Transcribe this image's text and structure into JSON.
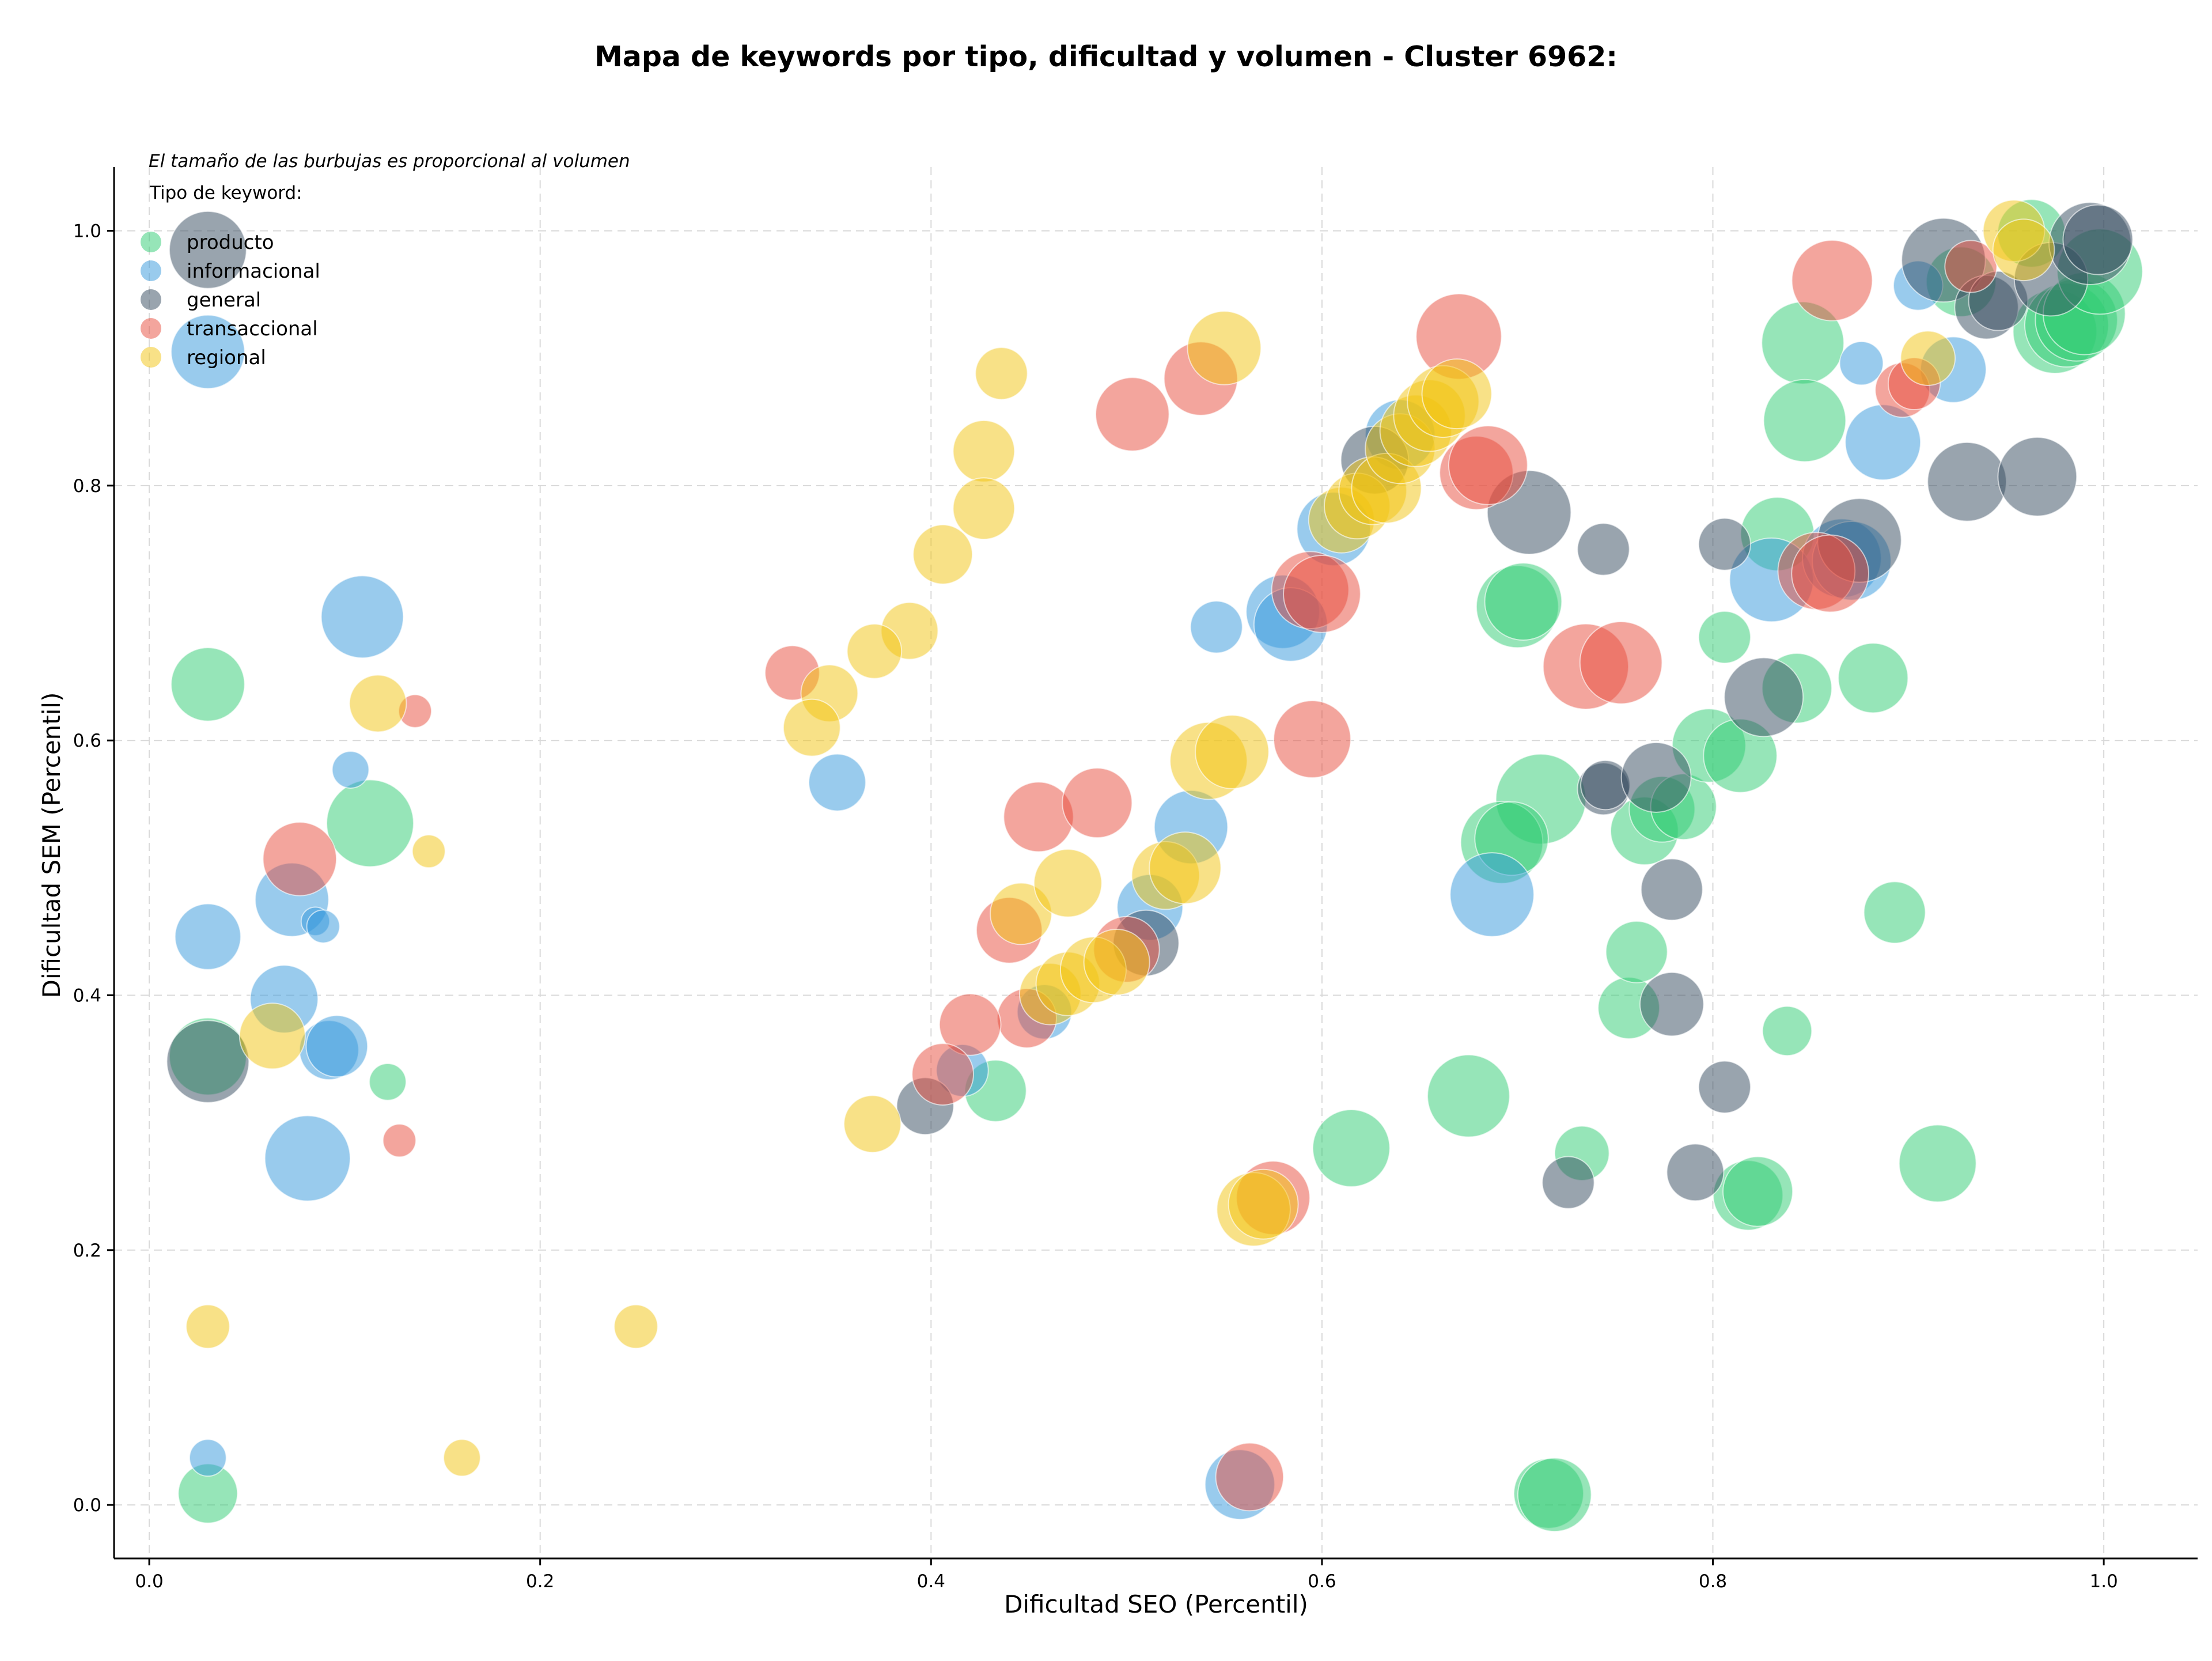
{
  "chart_data": {
    "type": "scatter",
    "title": "Mapa de keywords por tipo, dificultad y volumen - Cluster 6962:",
    "xlabel": "Dificultad SEO (Percentil)",
    "ylabel": "Dificultad SEM (Percentil)",
    "xlim": [
      -0.018,
      1.048
    ],
    "ylim": [
      -0.042,
      1.05
    ],
    "xticks": [
      "0.0",
      "0.2",
      "0.4",
      "0.6",
      "0.8",
      "1.0"
    ],
    "yticks": [
      "0.0",
      "0.2",
      "0.4",
      "0.6",
      "0.8",
      "1.0"
    ],
    "grid": true,
    "legend": {
      "placement": "top-left",
      "note": "El tamaño de las burbujas es proporcional al volumen",
      "title": "Tipo de keyword:"
    },
    "series": [
      {
        "name": "producto",
        "color": "#2ecc71",
        "points": [
          {
            "x": 0.03,
            "y": 0.644,
            "size": 2
          },
          {
            "x": 0.113,
            "y": 0.535,
            "size": 2.8
          },
          {
            "x": 0.03,
            "y": 0.352,
            "size": 2.2
          },
          {
            "x": 0.122,
            "y": 0.332,
            "size": 0.5
          },
          {
            "x": 0.03,
            "y": 0.009,
            "size": 1.3
          },
          {
            "x": 0.433,
            "y": 0.325,
            "size": 1.4
          },
          {
            "x": 0.615,
            "y": 0.28,
            "size": 2.2
          },
          {
            "x": 0.675,
            "y": 0.321,
            "size": 2.5
          },
          {
            "x": 0.733,
            "y": 0.276,
            "size": 1.1
          },
          {
            "x": 0.716,
            "y": 0.009,
            "size": 1.8
          },
          {
            "x": 0.719,
            "y": 0.008,
            "size": 2
          },
          {
            "x": 0.7,
            "y": 0.705,
            "size": 2.5
          },
          {
            "x": 0.703,
            "y": 0.709,
            "size": 2.2
          },
          {
            "x": 0.712,
            "y": 0.554,
            "size": 3
          },
          {
            "x": 0.692,
            "y": 0.52,
            "size": 2.5
          },
          {
            "x": 0.697,
            "y": 0.523,
            "size": 2
          },
          {
            "x": 0.757,
            "y": 0.39,
            "size": 1.4
          },
          {
            "x": 0.761,
            "y": 0.434,
            "size": 1.4
          },
          {
            "x": 0.765,
            "y": 0.529,
            "size": 1.7
          },
          {
            "x": 0.774,
            "y": 0.546,
            "size": 1.6
          },
          {
            "x": 0.785,
            "y": 0.548,
            "size": 1.6
          },
          {
            "x": 0.798,
            "y": 0.596,
            "size": 2
          },
          {
            "x": 0.814,
            "y": 0.588,
            "size": 2
          },
          {
            "x": 0.806,
            "y": 0.681,
            "size": 1
          },
          {
            "x": 0.818,
            "y": 0.243,
            "size": 1.8
          },
          {
            "x": 0.823,
            "y": 0.246,
            "size": 1.8
          },
          {
            "x": 0.838,
            "y": 0.372,
            "size": 0.9
          },
          {
            "x": 0.833,
            "y": 0.762,
            "size": 2
          },
          {
            "x": 0.843,
            "y": 0.641,
            "size": 1.8
          },
          {
            "x": 0.846,
            "y": 0.912,
            "size": 2.5
          },
          {
            "x": 0.847,
            "y": 0.851,
            "size": 2.5
          },
          {
            "x": 0.882,
            "y": 0.649,
            "size": 1.8
          },
          {
            "x": 0.893,
            "y": 0.465,
            "size": 1.4
          },
          {
            "x": 0.915,
            "y": 0.268,
            "size": 2.2
          },
          {
            "x": 0.927,
            "y": 0.96,
            "size": 1.8
          },
          {
            "x": 0.963,
            "y": 0.998,
            "size": 1.7
          },
          {
            "x": 0.975,
            "y": 0.921,
            "size": 2.6
          },
          {
            "x": 0.981,
            "y": 0.926,
            "size": 2.6
          },
          {
            "x": 0.986,
            "y": 0.93,
            "size": 2.5
          },
          {
            "x": 0.99,
            "y": 0.935,
            "size": 2.5
          },
          {
            "x": 0.998,
            "y": 0.968,
            "size": 2.7
          }
        ]
      },
      {
        "name": "informacional",
        "color": "#3498db",
        "points": [
          {
            "x": 0.03,
            "y": 0.905,
            "size": 2
          },
          {
            "x": 0.109,
            "y": 0.697,
            "size": 2.5
          },
          {
            "x": 0.103,
            "y": 0.577,
            "size": 0.5
          },
          {
            "x": 0.03,
            "y": 0.446,
            "size": 1.6
          },
          {
            "x": 0.073,
            "y": 0.475,
            "size": 2
          },
          {
            "x": 0.085,
            "y": 0.458,
            "size": 0.3
          },
          {
            "x": 0.089,
            "y": 0.454,
            "size": 0.4
          },
          {
            "x": 0.069,
            "y": 0.397,
            "size": 1.7
          },
          {
            "x": 0.092,
            "y": 0.357,
            "size": 1.3
          },
          {
            "x": 0.096,
            "y": 0.36,
            "size": 1.4
          },
          {
            "x": 0.081,
            "y": 0.272,
            "size": 2.7
          },
          {
            "x": 0.03,
            "y": 0.037,
            "size": 0.5
          },
          {
            "x": 0.352,
            "y": 0.567,
            "size": 1.2
          },
          {
            "x": 0.546,
            "y": 0.689,
            "size": 1
          },
          {
            "x": 0.533,
            "y": 0.532,
            "size": 2
          },
          {
            "x": 0.512,
            "y": 0.469,
            "size": 1.6
          },
          {
            "x": 0.416,
            "y": 0.341,
            "size": 1
          },
          {
            "x": 0.458,
            "y": 0.387,
            "size": 1.1
          },
          {
            "x": 0.558,
            "y": 0.016,
            "size": 1.8
          },
          {
            "x": 0.58,
            "y": 0.701,
            "size": 2
          },
          {
            "x": 0.584,
            "y": 0.691,
            "size": 2
          },
          {
            "x": 0.606,
            "y": 0.766,
            "size": 2
          },
          {
            "x": 0.64,
            "y": 0.84,
            "size": 1.8
          },
          {
            "x": 0.687,
            "y": 0.479,
            "size": 2.6
          },
          {
            "x": 0.83,
            "y": 0.726,
            "size": 2.6
          },
          {
            "x": 0.866,
            "y": 0.743,
            "size": 2.3
          },
          {
            "x": 0.871,
            "y": 0.741,
            "size": 2.3
          },
          {
            "x": 0.876,
            "y": 0.896,
            "size": 0.7
          },
          {
            "x": 0.887,
            "y": 0.834,
            "size": 2.1
          },
          {
            "x": 0.905,
            "y": 0.957,
            "size": 0.9
          },
          {
            "x": 0.923,
            "y": 0.891,
            "size": 1.6
          }
        ]
      },
      {
        "name": "general",
        "color": "#34495e",
        "points": [
          {
            "x": 0.03,
            "y": 0.985,
            "size": 2.2
          },
          {
            "x": 0.03,
            "y": 0.348,
            "size": 2.5
          },
          {
            "x": 0.397,
            "y": 0.313,
            "size": 1.2
          },
          {
            "x": 0.51,
            "y": 0.441,
            "size": 1.6
          },
          {
            "x": 0.627,
            "y": 0.82,
            "size": 1.7
          },
          {
            "x": 0.706,
            "y": 0.779,
            "size": 2.6
          },
          {
            "x": 0.744,
            "y": 0.75,
            "size": 1
          },
          {
            "x": 0.744,
            "y": 0.562,
            "size": 1
          },
          {
            "x": 0.745,
            "y": 0.565,
            "size": 0.9
          },
          {
            "x": 0.726,
            "y": 0.253,
            "size": 1
          },
          {
            "x": 0.771,
            "y": 0.571,
            "size": 1.8
          },
          {
            "x": 0.779,
            "y": 0.483,
            "size": 1.4
          },
          {
            "x": 0.779,
            "y": 0.393,
            "size": 1.5
          },
          {
            "x": 0.791,
            "y": 0.261,
            "size": 1.2
          },
          {
            "x": 0.806,
            "y": 0.754,
            "size": 1
          },
          {
            "x": 0.806,
            "y": 0.328,
            "size": 1
          },
          {
            "x": 0.826,
            "y": 0.634,
            "size": 2.3
          },
          {
            "x": 0.875,
            "y": 0.757,
            "size": 2.6
          },
          {
            "x": 0.918,
            "y": 0.977,
            "size": 2.6
          },
          {
            "x": 0.93,
            "y": 0.803,
            "size": 2.3
          },
          {
            "x": 0.94,
            "y": 0.94,
            "size": 1.5
          },
          {
            "x": 0.946,
            "y": 0.945,
            "size": 1.3
          },
          {
            "x": 0.966,
            "y": 0.807,
            "size": 2.3
          },
          {
            "x": 0.973,
            "y": 0.962,
            "size": 2
          },
          {
            "x": 0.993,
            "y": 0.99,
            "size": 2.5
          },
          {
            "x": 0.997,
            "y": 0.993,
            "size": 1.8
          }
        ]
      },
      {
        "name": "transaccional",
        "color": "#e74c3c",
        "points": [
          {
            "x": 0.136,
            "y": 0.623,
            "size": 0.4
          },
          {
            "x": 0.077,
            "y": 0.507,
            "size": 2
          },
          {
            "x": 0.128,
            "y": 0.286,
            "size": 0.4
          },
          {
            "x": 0.329,
            "y": 0.653,
            "size": 1.1
          },
          {
            "x": 0.503,
            "y": 0.856,
            "size": 2
          },
          {
            "x": 0.538,
            "y": 0.884,
            "size": 2
          },
          {
            "x": 0.455,
            "y": 0.54,
            "size": 1.8
          },
          {
            "x": 0.485,
            "y": 0.551,
            "size": 1.8
          },
          {
            "x": 0.44,
            "y": 0.451,
            "size": 1.6
          },
          {
            "x": 0.449,
            "y": 0.382,
            "size": 1.3
          },
          {
            "x": 0.42,
            "y": 0.377,
            "size": 1.4
          },
          {
            "x": 0.406,
            "y": 0.338,
            "size": 1.4
          },
          {
            "x": 0.5,
            "y": 0.436,
            "size": 1.6
          },
          {
            "x": 0.563,
            "y": 0.022,
            "size": 1.7
          },
          {
            "x": 0.575,
            "y": 0.241,
            "size": 2
          },
          {
            "x": 0.594,
            "y": 0.718,
            "size": 2.2
          },
          {
            "x": 0.6,
            "y": 0.715,
            "size": 2.2
          },
          {
            "x": 0.595,
            "y": 0.601,
            "size": 2.2
          },
          {
            "x": 0.67,
            "y": 0.917,
            "size": 2.7
          },
          {
            "x": 0.679,
            "y": 0.81,
            "size": 2
          },
          {
            "x": 0.685,
            "y": 0.816,
            "size": 2.3
          },
          {
            "x": 0.735,
            "y": 0.658,
            "size": 2.7
          },
          {
            "x": 0.753,
            "y": 0.661,
            "size": 2.5
          },
          {
            "x": 0.861,
            "y": 0.961,
            "size": 2.4
          },
          {
            "x": 0.853,
            "y": 0.733,
            "size": 2.2
          },
          {
            "x": 0.86,
            "y": 0.731,
            "size": 2.2
          },
          {
            "x": 0.897,
            "y": 0.875,
            "size": 1.1
          },
          {
            "x": 0.903,
            "y": 0.88,
            "size": 1
          },
          {
            "x": 0.932,
            "y": 0.972,
            "size": 1
          }
        ]
      },
      {
        "name": "regional",
        "color": "#f1c40f",
        "points": [
          {
            "x": 0.117,
            "y": 0.629,
            "size": 1.2
          },
          {
            "x": 0.143,
            "y": 0.513,
            "size": 0.4
          },
          {
            "x": 0.063,
            "y": 0.368,
            "size": 1.6
          },
          {
            "x": 0.03,
            "y": 0.14,
            "size": 0.7
          },
          {
            "x": 0.16,
            "y": 0.037,
            "size": 0.5
          },
          {
            "x": 0.249,
            "y": 0.14,
            "size": 0.7
          },
          {
            "x": 0.436,
            "y": 0.888,
            "size": 1
          },
          {
            "x": 0.427,
            "y": 0.827,
            "size": 1.4
          },
          {
            "x": 0.427,
            "y": 0.782,
            "size": 1.4
          },
          {
            "x": 0.406,
            "y": 0.746,
            "size": 1.3
          },
          {
            "x": 0.389,
            "y": 0.686,
            "size": 1.2
          },
          {
            "x": 0.371,
            "y": 0.67,
            "size": 1.1
          },
          {
            "x": 0.348,
            "y": 0.637,
            "size": 1.2
          },
          {
            "x": 0.339,
            "y": 0.61,
            "size": 1.2
          },
          {
            "x": 0.37,
            "y": 0.299,
            "size": 1.2
          },
          {
            "x": 0.55,
            "y": 0.908,
            "size": 2
          },
          {
            "x": 0.542,
            "y": 0.584,
            "size": 2.2
          },
          {
            "x": 0.554,
            "y": 0.591,
            "size": 2
          },
          {
            "x": 0.446,
            "y": 0.464,
            "size": 1.4
          },
          {
            "x": 0.47,
            "y": 0.488,
            "size": 1.7
          },
          {
            "x": 0.461,
            "y": 0.401,
            "size": 1.4
          },
          {
            "x": 0.47,
            "y": 0.409,
            "size": 1.5
          },
          {
            "x": 0.483,
            "y": 0.42,
            "size": 1.6
          },
          {
            "x": 0.495,
            "y": 0.426,
            "size": 1.6
          },
          {
            "x": 0.52,
            "y": 0.494,
            "size": 1.7
          },
          {
            "x": 0.53,
            "y": 0.5,
            "size": 1.9
          },
          {
            "x": 0.565,
            "y": 0.232,
            "size": 2
          },
          {
            "x": 0.57,
            "y": 0.236,
            "size": 1.8
          },
          {
            "x": 0.61,
            "y": 0.773,
            "size": 1.6
          },
          {
            "x": 0.618,
            "y": 0.784,
            "size": 1.6
          },
          {
            "x": 0.626,
            "y": 0.796,
            "size": 1.7
          },
          {
            "x": 0.633,
            "y": 0.798,
            "size": 1.8
          },
          {
            "x": 0.64,
            "y": 0.829,
            "size": 1.8
          },
          {
            "x": 0.648,
            "y": 0.843,
            "size": 1.9
          },
          {
            "x": 0.655,
            "y": 0.855,
            "size": 1.9
          },
          {
            "x": 0.662,
            "y": 0.866,
            "size": 1.9
          },
          {
            "x": 0.669,
            "y": 0.872,
            "size": 1.8
          },
          {
            "x": 0.91,
            "y": 0.9,
            "size": 1.1
          },
          {
            "x": 0.954,
            "y": 1.0,
            "size": 1.4
          },
          {
            "x": 0.959,
            "y": 0.985,
            "size": 1.4
          }
        ]
      }
    ]
  }
}
